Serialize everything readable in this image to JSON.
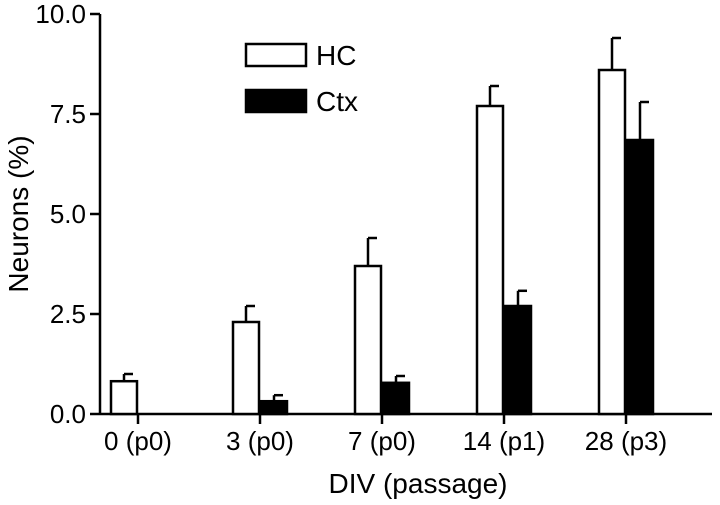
{
  "chart_data": {
    "type": "bar",
    "xlabel": "DIV (passage)",
    "ylabel": "Neurons (%)",
    "ylim": [
      0,
      10
    ],
    "yticks": [
      0,
      2.5,
      5,
      7.5,
      10
    ],
    "ytick_labels": [
      "0.0",
      "2.5",
      "5.0",
      "7.5",
      "10.0"
    ],
    "categories": [
      "0 (p0)",
      "3 (p0)",
      "7 (p0)",
      "14 (p1)",
      "28 (p3)"
    ],
    "series": [
      {
        "name": "HC",
        "fill": "#ffffff",
        "values": [
          0.82,
          2.3,
          3.7,
          7.7,
          8.6
        ],
        "errors": [
          0.18,
          0.4,
          0.7,
          0.5,
          0.8
        ]
      },
      {
        "name": "Ctx",
        "fill": "#000000",
        "values": [
          null,
          0.32,
          0.78,
          2.7,
          6.85
        ],
        "errors": [
          null,
          0.15,
          0.17,
          0.38,
          0.95
        ]
      }
    ],
    "legend": "top-left",
    "grid": false
  }
}
